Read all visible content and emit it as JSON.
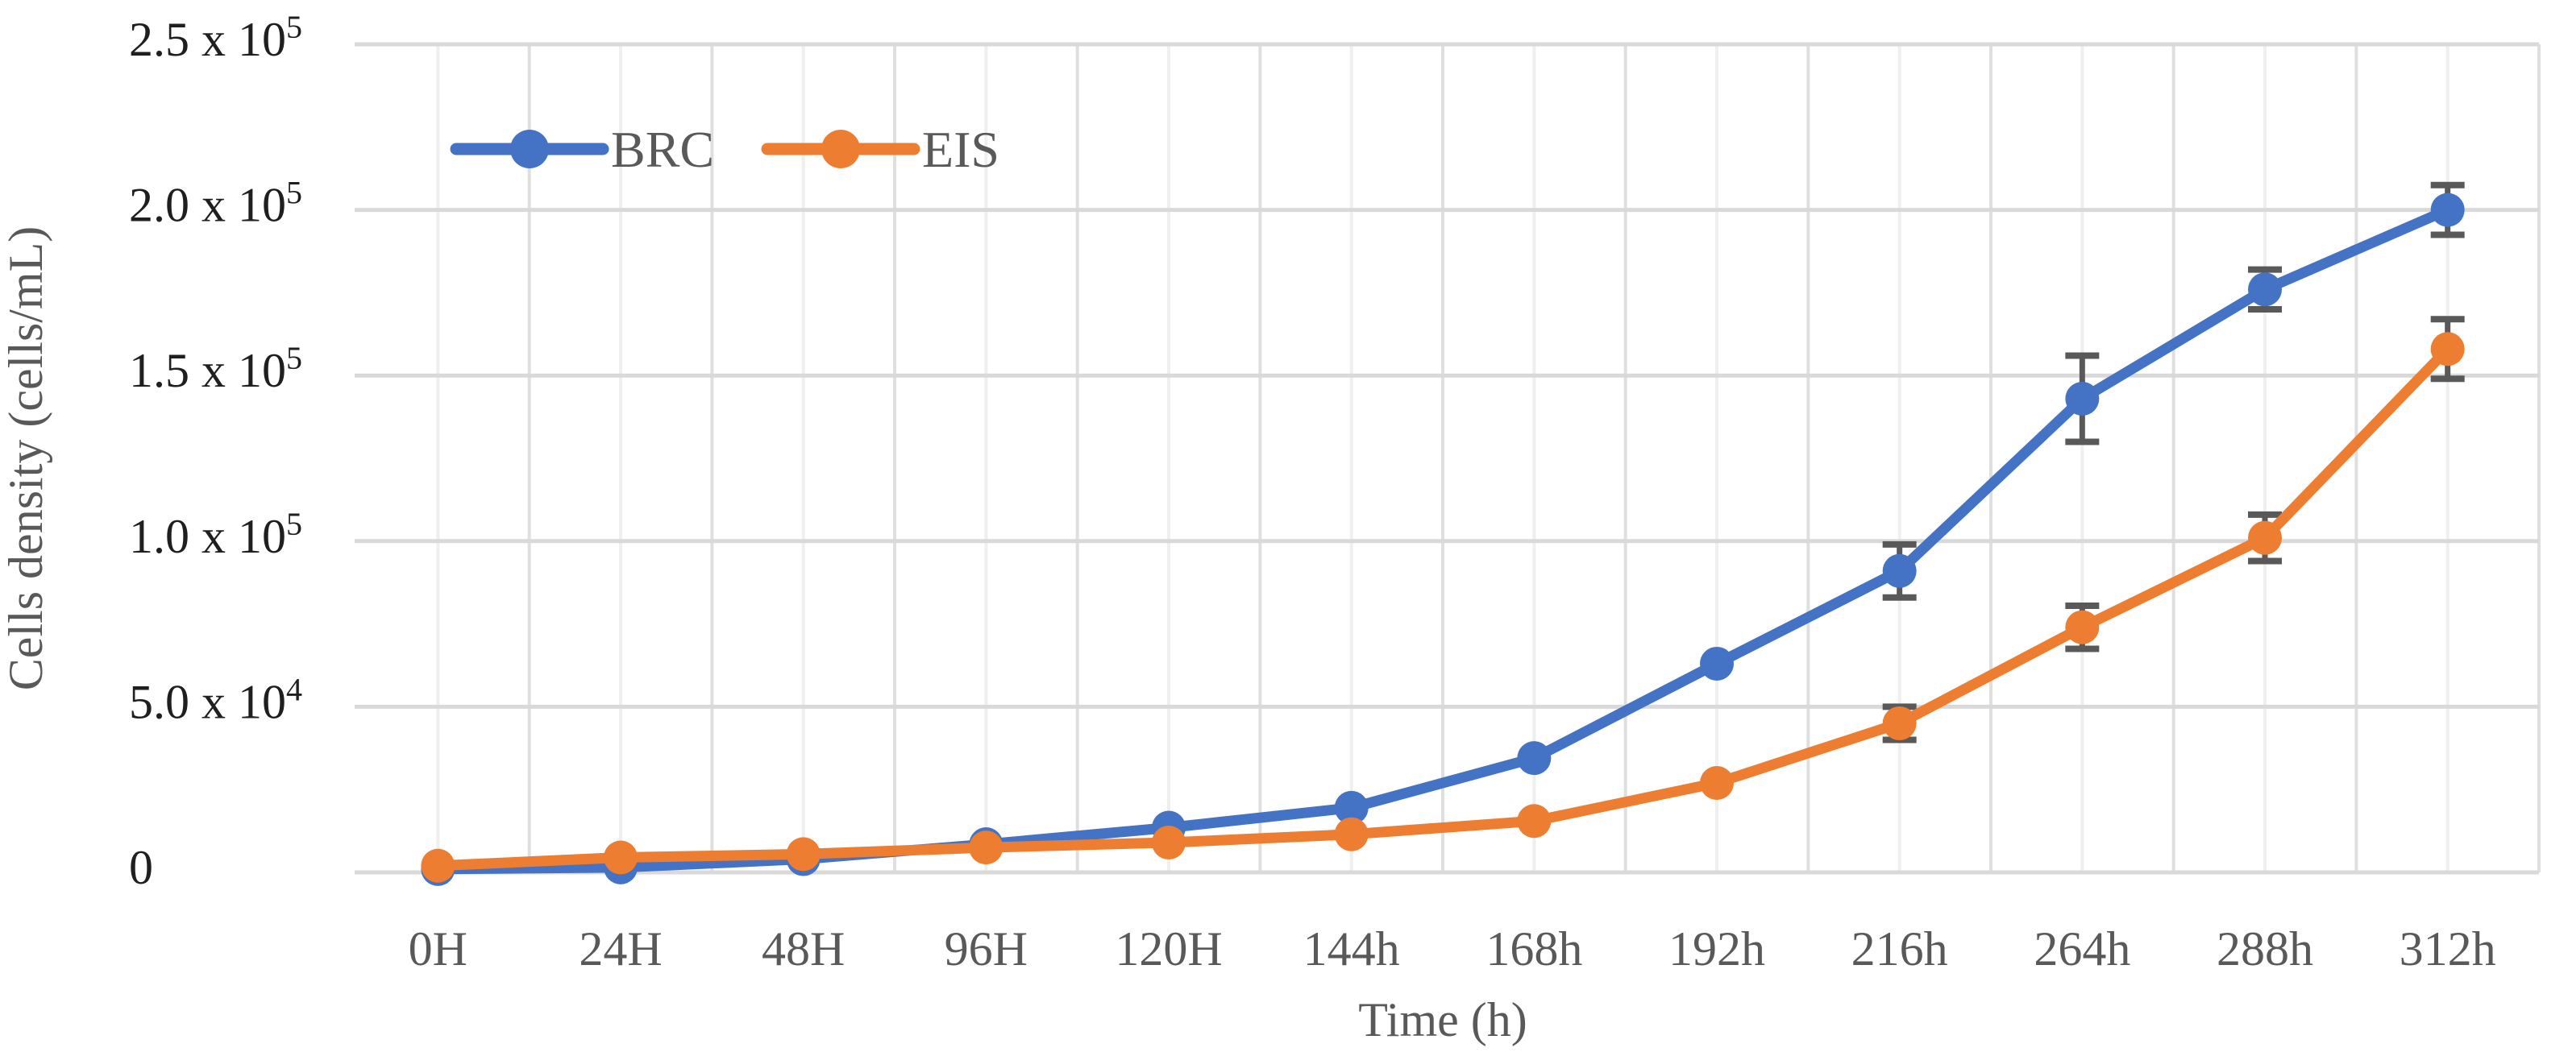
{
  "figure": {
    "background": "#FFFFFF"
  },
  "chart_data": {
    "type": "line",
    "title": "",
    "xlabel": "Time (h)",
    "ylabel": "Cells density (cells/mL)",
    "categories": [
      "0H",
      "24H",
      "48H",
      "96H",
      "120H",
      "144h",
      "168h",
      "192h",
      "216h",
      "264h",
      "288h",
      "312h"
    ],
    "ylim": [
      0,
      250000
    ],
    "y_ticks": [
      {
        "value": 0,
        "label": "0",
        "sup": ""
      },
      {
        "value": 50000,
        "label": "5.0 x 10",
        "sup": "4"
      },
      {
        "value": 100000,
        "label": "1.0 x 10",
        "sup": "5"
      },
      {
        "value": 150000,
        "label": "1.5 x 10",
        "sup": "5"
      },
      {
        "value": 200000,
        "label": "2.0 x 10",
        "sup": "5"
      },
      {
        "value": 250000,
        "label": "2.5 x 10",
        "sup": "5"
      }
    ],
    "grid": {
      "horizontal": true,
      "vertical": true,
      "vertical_every_half_slot": true
    },
    "legend": {
      "position": "top-inside-left",
      "entries": [
        "BRC",
        "EIS"
      ]
    },
    "series": [
      {
        "name": "BRC",
        "color": "#4472C4",
        "marker": "circle",
        "values": [
          1000,
          1500,
          4000,
          8500,
          13500,
          19500,
          34500,
          63000,
          91000,
          143000,
          176000,
          200000
        ],
        "error_bars": [
          0,
          0,
          0,
          0,
          0,
          0,
          0,
          0,
          8000,
          13000,
          6000,
          7500
        ]
      },
      {
        "name": "EIS",
        "color": "#ED7D31",
        "marker": "circle",
        "values": [
          2000,
          4500,
          5500,
          7500,
          9000,
          11500,
          15500,
          27000,
          45000,
          74000,
          101000,
          158000
        ],
        "error_bars": [
          0,
          0,
          0,
          0,
          0,
          0,
          0,
          0,
          5000,
          6500,
          7000,
          9000
        ]
      }
    ],
    "error_bar_color": "#595959"
  },
  "styles": {
    "grid_h_color": "#D9D9D9",
    "grid_v_boundary_color": "#DFDFDF",
    "grid_v_center_color": "#EFEFEF",
    "y_tick_label_color": "#1F1F1F",
    "x_tick_label_color": "#595959",
    "axis_title_color": "#595959",
    "legend_label_color": "#595959"
  }
}
